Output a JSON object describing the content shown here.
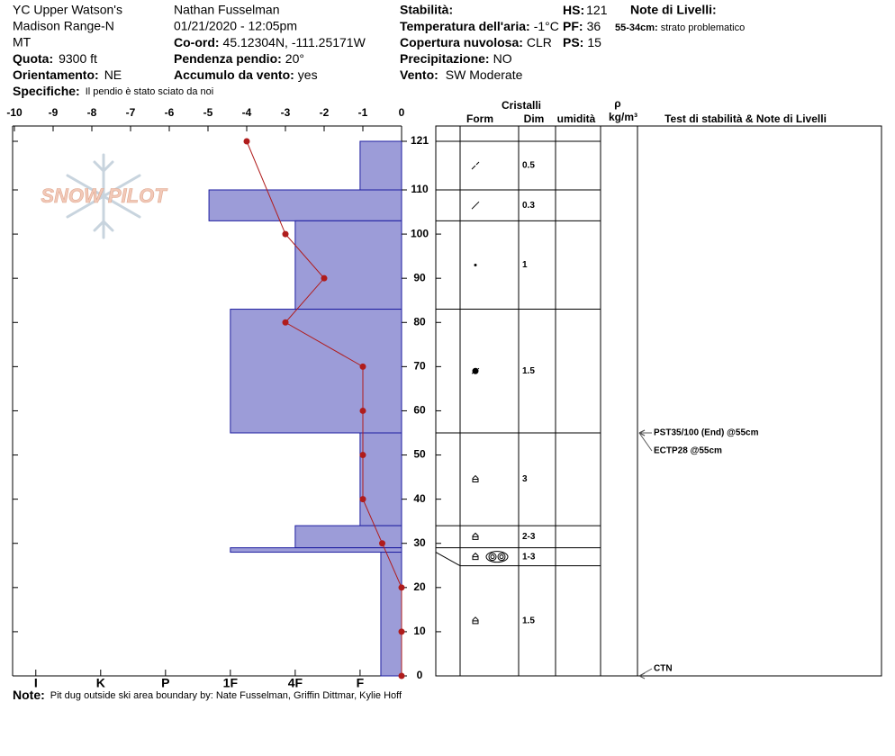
{
  "header": {
    "site": "YC Upper Watson's",
    "range": "Madison Range-N",
    "state": "MT",
    "elevation": {
      "label": "Quota:",
      "value": "9300 ft"
    },
    "aspect": {
      "label": "Orientamento:",
      "value": "NE"
    },
    "specifics": {
      "label": "Specifiche:",
      "value": "Il pendio è stato sciato da noi"
    },
    "observer": "Nathan Fusselman",
    "datetime": "01/21/2020 - 12:05pm",
    "coords": {
      "label": "Co-ord:",
      "value": "45.12304N, -111.25171W"
    },
    "slope": {
      "label": "Pendenza pendio:",
      "value": "20°"
    },
    "wind_loading": {
      "label": "Accumulo da vento:",
      "value": "yes"
    },
    "stability": {
      "label": "Stabilità:"
    },
    "hs": {
      "label": "HS:",
      "value": "121"
    },
    "air_temp": {
      "label": "Temperatura dell'aria:",
      "value": "-1°C"
    },
    "pf": {
      "label": "PF:",
      "value": "36"
    },
    "sky": {
      "label": "Copertura nuvolosa:",
      "value": "CLR"
    },
    "ps": {
      "label": "PS:",
      "value": "15"
    },
    "precip": {
      "label": "Precipitazione:",
      "value": "NO"
    },
    "wind": {
      "label": "Vento:",
      "value": "SW Moderate"
    },
    "layer_notes": {
      "label": "Note di Livelli:",
      "range": "55-34cm:",
      "text": "strato problematico"
    }
  },
  "logo": "SNOW PILOT",
  "chart_data": {
    "type": "snow-profile",
    "xlim": [
      -10,
      0
    ],
    "xticks": [
      -10,
      -9,
      -8,
      -7,
      -6,
      -5,
      -4,
      -3,
      -2,
      -1,
      0
    ],
    "ylim": [
      0,
      121
    ],
    "yticks": [
      0,
      10,
      20,
      30,
      40,
      50,
      60,
      70,
      80,
      90,
      100,
      110,
      121
    ],
    "hardness_lim": [
      0.36,
      6.33
    ],
    "hardness_ticks": [
      {
        "value": 1,
        "label": "F"
      },
      {
        "value": 2,
        "label": "4F"
      },
      {
        "value": 3,
        "label": "1F"
      },
      {
        "value": 4,
        "label": "P"
      },
      {
        "value": 5,
        "label": "K"
      },
      {
        "value": 6,
        "label": "I"
      }
    ],
    "layers": {
      "tops": [
        121,
        110,
        103,
        83,
        55,
        34,
        29,
        28
      ],
      "bottoms": [
        110,
        103,
        83,
        55,
        34,
        29,
        28,
        0
      ],
      "hardness": [
        1,
        3.33,
        2,
        3,
        1,
        2,
        3,
        0.68
      ],
      "color": "#9c9cd8"
    },
    "temperature": {
      "depth": [
        121,
        100,
        90,
        80,
        70,
        60,
        50,
        40,
        30,
        20,
        10,
        0
      ],
      "values": [
        -4,
        -3,
        -2,
        -3,
        -1,
        -1,
        -1,
        -1,
        -0.5,
        0,
        0,
        0
      ],
      "color": "#b01c1c"
    },
    "grains": {
      "header": "Cristalli",
      "form_label": "Form",
      "size_label": "Dim",
      "moisture_label": "umidità",
      "density_label": "ρ",
      "density_unit": "kg/m³",
      "sizes": [
        "0.5",
        "0.3",
        "1",
        "1.5",
        "3",
        "2-3",
        "1-3",
        "1.5"
      ]
    },
    "tests": {
      "header": "Test di stabilità & Note di Livelli",
      "labels": [
        "PST35/100 (End) @55cm",
        "ECTP28 @55cm",
        "CTN"
      ],
      "depths": [
        55,
        55,
        0
      ]
    }
  },
  "note": {
    "label": "Note:",
    "text": "Pit dug outside ski area boundary by: Nate Fusselman, Griffin Dittmar, Kylie Hoff"
  }
}
